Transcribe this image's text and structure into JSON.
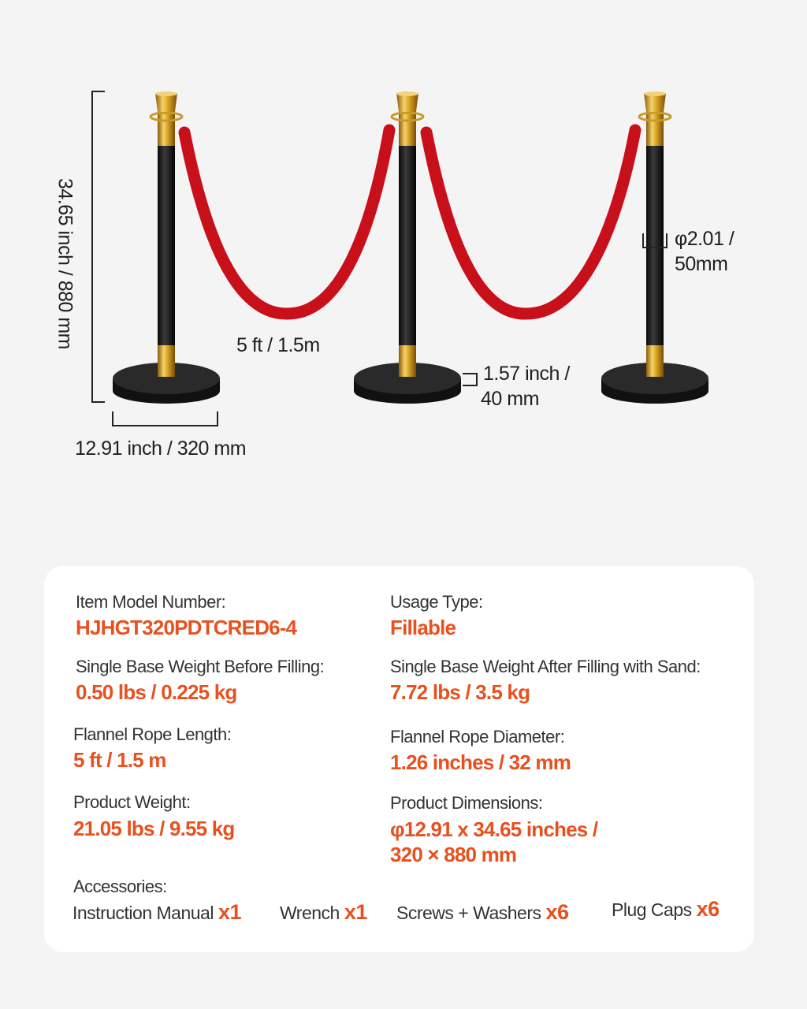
{
  "dimensions": {
    "height": "34.65 inch / 880 mm",
    "base_width": "12.91 inch / 320 mm",
    "rope_length": "5 ft / 1.5m",
    "base_height_line1": "1.57 inch /",
    "base_height_line2": "40 mm",
    "post_diameter_line1": "φ2.01 /",
    "post_diameter_line2": "50mm"
  },
  "colors": {
    "background": "#f4f4f4",
    "accent": "#e8501e",
    "rope": "#c8101a",
    "gold": "#d4a021",
    "post": "#1a1a1a"
  },
  "specs": [
    {
      "label": "Item Model Number:",
      "value": "HJHGT320PDTCRED6-4"
    },
    {
      "label": "Usage Type:",
      "value": "Fillable"
    },
    {
      "label": "Single Base Weight Before Filling:",
      "value": "0.50 lbs / 0.225 kg"
    },
    {
      "label": "Single Base Weight After Filling with Sand:",
      "value": "7.72 lbs / 3.5 kg"
    },
    {
      "label": "Flannel Rope Length:",
      "value": "5 ft / 1.5 m"
    },
    {
      "label": "Flannel Rope Diameter:",
      "value": "1.26 inches / 32 mm"
    },
    {
      "label": "Product Weight:",
      "value": "21.05 lbs / 9.55 kg"
    },
    {
      "label": "Product Dimensions:",
      "value": "φ12.91 x 34.65 inches /",
      "value2": "320 × 880 mm"
    }
  ],
  "accessories": {
    "label": "Accessories:",
    "items": [
      {
        "name": "Instruction Manual",
        "qty": "x1"
      },
      {
        "name": "Wrench",
        "qty": "x1"
      },
      {
        "name": "Screws + Washers",
        "qty": "x6"
      },
      {
        "name": "Plug Caps",
        "qty": "x6"
      }
    ]
  }
}
